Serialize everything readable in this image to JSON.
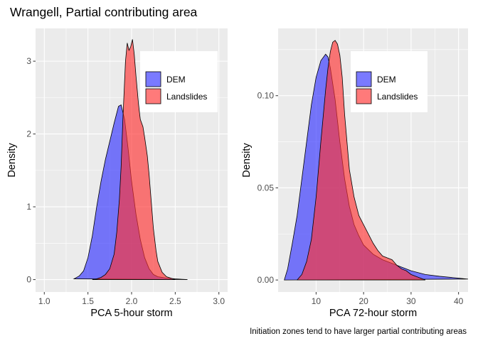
{
  "title": "Wrangell, Partial contributing area",
  "caption": "Initiation zones tend to have larger partial contributing areas",
  "colors": {
    "DEM": "#3333FF",
    "Landslides": "#FF3333",
    "alpha": 0.65
  },
  "chart_data": [
    {
      "type": "area",
      "xlabel": "PCA 5-hour storm",
      "ylabel": "Density",
      "xlim": [
        0.9,
        3.1
      ],
      "ylim": [
        -0.17,
        3.45
      ],
      "xticks": [
        1.0,
        1.5,
        2.0,
        2.5,
        3.0
      ],
      "xtick_labels": [
        "1.0",
        "1.5",
        "2.0",
        "2.5",
        "3.0"
      ],
      "yticks": [
        0,
        1,
        2,
        3
      ],
      "ytick_labels": [
        "0",
        "1",
        "2",
        "3"
      ],
      "legend": {
        "entries": [
          "DEM",
          "Landslides"
        ],
        "position": "top-right"
      },
      "grid": true,
      "series": [
        {
          "name": "DEM",
          "x": [
            1.34,
            1.4,
            1.45,
            1.5,
            1.55,
            1.6,
            1.65,
            1.7,
            1.75,
            1.8,
            1.85,
            1.88,
            1.92,
            1.96,
            2.0,
            2.05,
            2.1,
            2.15,
            2.2,
            2.25,
            2.3,
            2.4,
            2.5,
            2.64
          ],
          "y": [
            0.01,
            0.05,
            0.12,
            0.3,
            0.6,
            1.0,
            1.35,
            1.65,
            1.9,
            2.15,
            2.38,
            2.4,
            2.2,
            1.8,
            1.35,
            0.9,
            0.55,
            0.3,
            0.15,
            0.07,
            0.04,
            0.02,
            0.01,
            0.0
          ]
        },
        {
          "name": "Landslides",
          "x": [
            1.55,
            1.6,
            1.65,
            1.7,
            1.75,
            1.8,
            1.83,
            1.86,
            1.88,
            1.9,
            1.93,
            1.95,
            1.97,
            1.99,
            2.01,
            2.03,
            2.05,
            2.08,
            2.1,
            2.13,
            2.15,
            2.18,
            2.2,
            2.22,
            2.25,
            2.28,
            2.3,
            2.35,
            2.4,
            2.45,
            2.5
          ],
          "y": [
            0.0,
            0.01,
            0.03,
            0.07,
            0.15,
            0.35,
            0.65,
            1.1,
            1.55,
            2.2,
            3.0,
            3.25,
            3.15,
            3.2,
            3.3,
            3.1,
            2.8,
            2.4,
            2.2,
            2.1,
            1.95,
            1.7,
            1.45,
            1.15,
            0.7,
            0.4,
            0.25,
            0.1,
            0.04,
            0.02,
            0.0
          ]
        }
      ]
    },
    {
      "type": "area",
      "xlabel": "PCA 72-hour storm",
      "ylabel": "Density",
      "xlim": [
        2.0,
        42.0
      ],
      "ylim": [
        -0.0065,
        0.1365
      ],
      "xticks": [
        10,
        20,
        30,
        40
      ],
      "xtick_labels": [
        "10",
        "20",
        "30",
        "40"
      ],
      "yticks": [
        0.0,
        0.05,
        0.1
      ],
      "ytick_labels": [
        "0.00",
        "0.05",
        "0.10"
      ],
      "legend": {
        "entries": [
          "DEM",
          "Landslides"
        ],
        "position": "top-right"
      },
      "grid": true,
      "series": [
        {
          "name": "DEM",
          "x": [
            3.3,
            4,
            5,
            6,
            7,
            8,
            9,
            10,
            11,
            12,
            12.5,
            13,
            14,
            15,
            16,
            17,
            18,
            19,
            20,
            22,
            24,
            26,
            28,
            30,
            33,
            36,
            40,
            42
          ],
          "y": [
            0.0,
            0.006,
            0.02,
            0.035,
            0.055,
            0.075,
            0.095,
            0.11,
            0.119,
            0.1225,
            0.121,
            0.115,
            0.098,
            0.075,
            0.055,
            0.04,
            0.03,
            0.024,
            0.019,
            0.014,
            0.011,
            0.009,
            0.007,
            0.005,
            0.003,
            0.002,
            0.001,
            0.0005
          ]
        },
        {
          "name": "Landslides",
          "x": [
            6,
            7,
            8,
            9,
            10,
            11,
            12,
            12.5,
            13,
            13.5,
            14,
            14.5,
            15,
            15.5,
            16,
            17,
            18,
            19,
            20,
            21,
            22,
            23,
            24,
            25,
            26,
            27,
            28,
            29,
            30,
            31,
            32,
            33
          ],
          "y": [
            0.0,
            0.003,
            0.01,
            0.022,
            0.045,
            0.075,
            0.103,
            0.115,
            0.124,
            0.129,
            0.13,
            0.128,
            0.122,
            0.11,
            0.09,
            0.06,
            0.045,
            0.035,
            0.03,
            0.025,
            0.02,
            0.016,
            0.013,
            0.012,
            0.011,
            0.008,
            0.006,
            0.005,
            0.003,
            0.002,
            0.001,
            0.0
          ]
        }
      ]
    }
  ]
}
